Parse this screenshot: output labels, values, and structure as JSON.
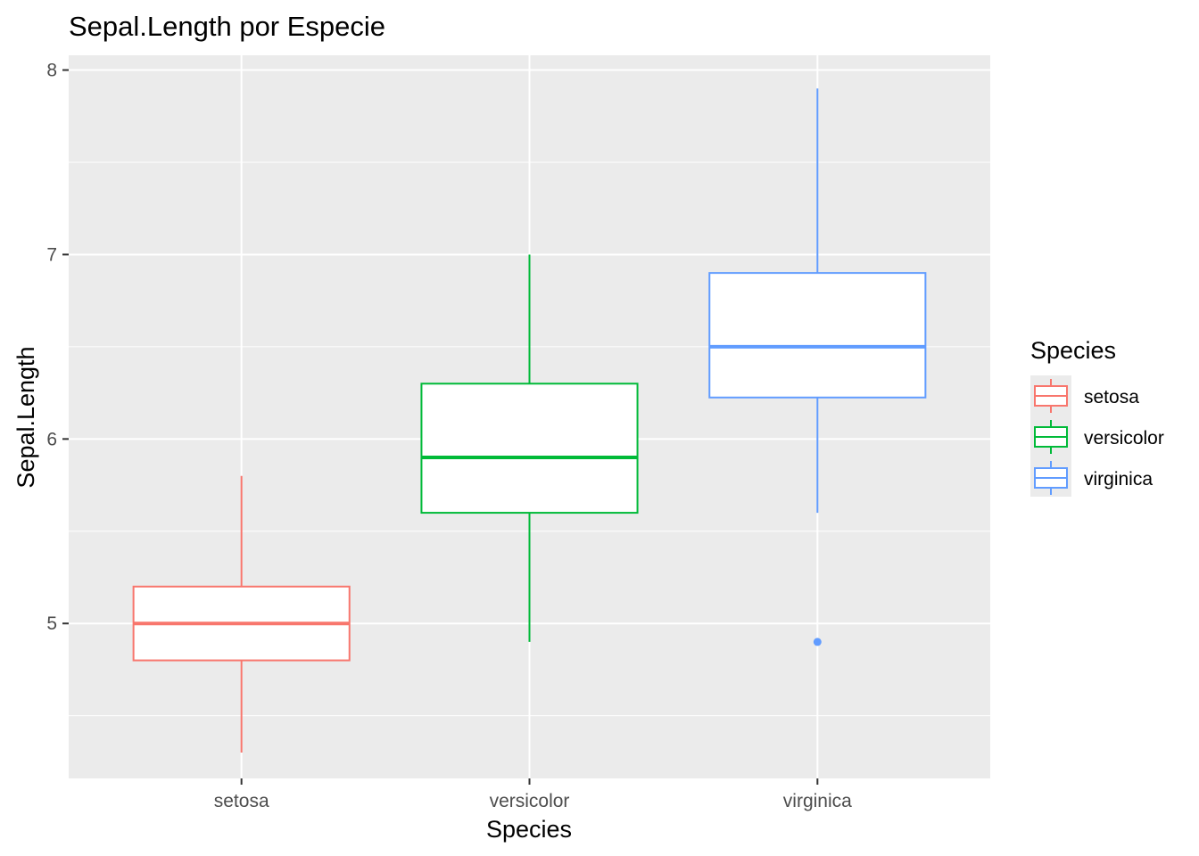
{
  "chart_data": {
    "type": "boxplot",
    "title": "Sepal.Length por Especie",
    "xlabel": "Species",
    "ylabel": "Sepal.Length",
    "categories": [
      "setosa",
      "versicolor",
      "virginica"
    ],
    "ylim": [
      4.16,
      8.08
    ],
    "y_ticks": [
      5,
      6,
      7,
      8
    ],
    "y_minor_ticks": [
      4.5,
      5.5,
      6.5,
      7.5
    ],
    "grid": true,
    "legend": {
      "title": "Species",
      "placement": "right",
      "entries": [
        "setosa",
        "versicolor",
        "virginica"
      ]
    },
    "series": [
      {
        "name": "setosa",
        "color": "#F8766D",
        "min": 4.3,
        "q1": 4.8,
        "median": 5.0,
        "q3": 5.2,
        "max": 5.8,
        "outliers": []
      },
      {
        "name": "versicolor",
        "color": "#00BA38",
        "min": 4.9,
        "q1": 5.6,
        "median": 5.9,
        "q3": 6.3,
        "max": 7.0,
        "outliers": []
      },
      {
        "name": "virginica",
        "color": "#619CFF",
        "min": 5.6,
        "q1": 6.225,
        "median": 6.5,
        "q3": 6.9,
        "max": 7.9,
        "outliers": [
          4.9
        ]
      }
    ],
    "colors": {
      "panel_background": "#EBEBEB",
      "grid": "#FFFFFF",
      "box_fill": "#FFFFFF",
      "tick_label": "#4D4D4D"
    }
  }
}
